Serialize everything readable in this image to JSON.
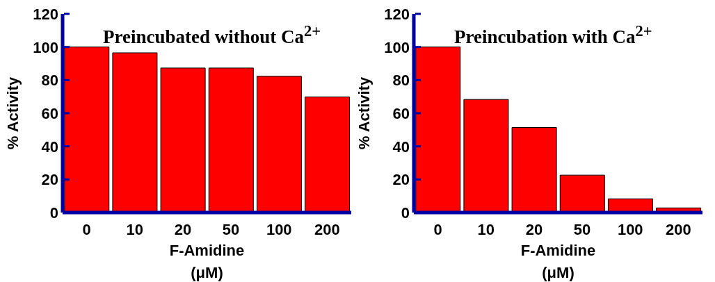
{
  "chart_data": [
    {
      "type": "bar",
      "title": "Preincubated without Ca$^{2+}$",
      "xlabel": "F-Amidine\n(μM)",
      "ylabel": "% Activity",
      "categories": [
        "0",
        "10",
        "20",
        "50",
        "100",
        "200"
      ],
      "values": [
        100,
        96.5,
        87.3,
        87.3,
        82.3,
        69.8
      ],
      "color": "#ff0000",
      "ylim": [
        0,
        120
      ],
      "yticks": [
        0,
        20,
        40,
        60,
        80,
        100,
        120
      ],
      "grid": false
    },
    {
      "type": "bar",
      "title": "Preincubation with Ca$^{2+}$",
      "xlabel": "F-Amidine\n(μM)",
      "ylabel": "% Activity",
      "categories": [
        "0",
        "10",
        "20",
        "50",
        "100",
        "200"
      ],
      "values": [
        100,
        68.3,
        51.4,
        22.6,
        8.3,
        2.8
      ],
      "color": "#ff0000",
      "ylim": [
        0,
        120
      ],
      "yticks": [
        0,
        20,
        40,
        60,
        80,
        100,
        120
      ],
      "grid": false
    }
  ]
}
